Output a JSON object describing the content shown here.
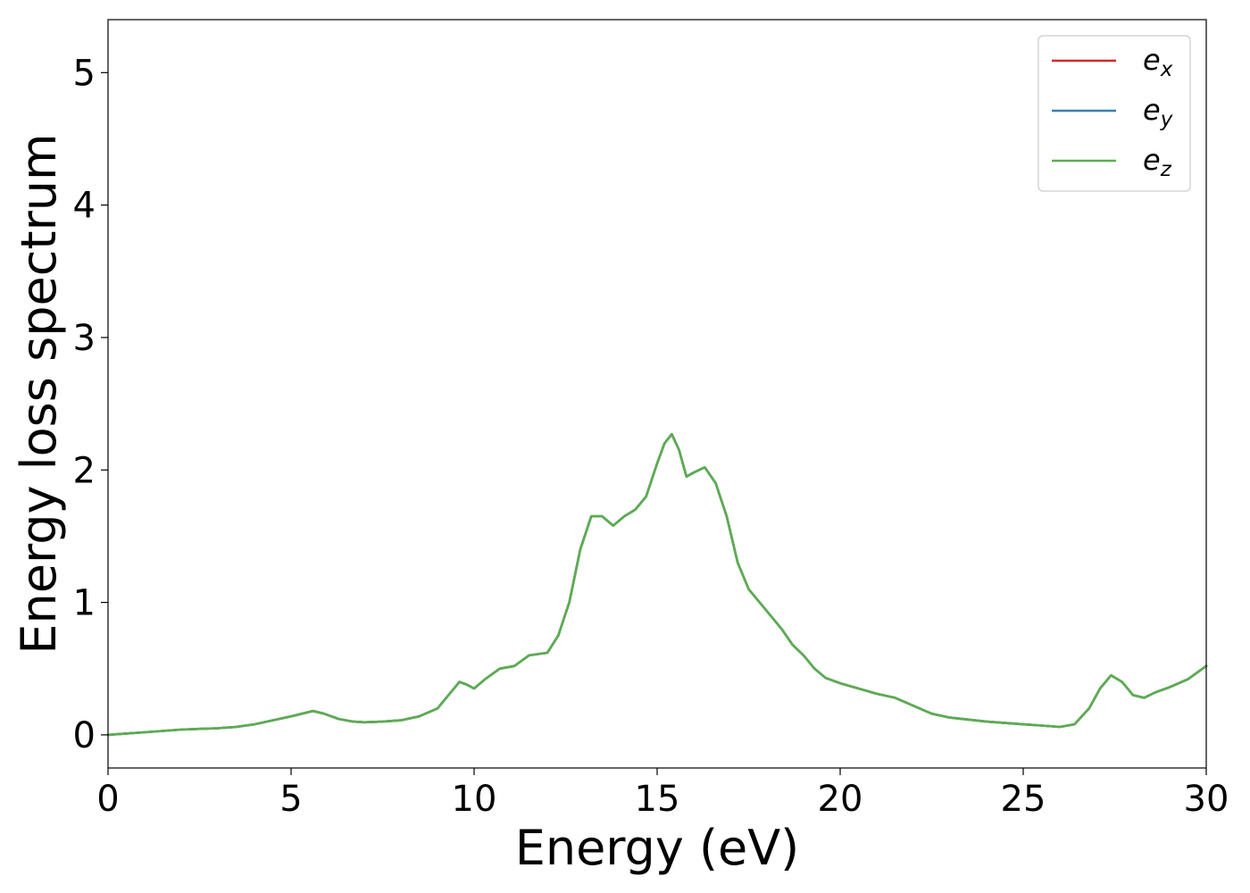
{
  "chart_data": {
    "type": "line",
    "xlabel": "Energy (eV)",
    "ylabel": "Energy loss spectrum",
    "xlim": [
      0,
      30
    ],
    "ylim": [
      -0.25,
      5.4
    ],
    "xticks": [
      0,
      5,
      10,
      15,
      20,
      25,
      30
    ],
    "yticks": [
      0,
      1,
      2,
      3,
      4,
      5
    ],
    "grid": false,
    "legend_position": "top-right",
    "series": [
      {
        "name": "e",
        "subscript": "x",
        "color": "#d62728"
      },
      {
        "name": "e",
        "subscript": "y",
        "color": "#3a7fb5"
      },
      {
        "name": "e",
        "subscript": "z",
        "color": "#5aae4f"
      }
    ],
    "x": [
      0,
      0.5,
      1.0,
      1.5,
      2.0,
      2.5,
      3.0,
      3.5,
      4.0,
      4.5,
      5.0,
      5.3,
      5.6,
      5.9,
      6.3,
      6.7,
      7.0,
      7.5,
      8.0,
      8.5,
      9.0,
      9.3,
      9.6,
      9.8,
      10.0,
      10.3,
      10.7,
      11.1,
      11.5,
      12.0,
      12.3,
      12.6,
      12.9,
      13.2,
      13.5,
      13.8,
      14.1,
      14.4,
      14.7,
      15.0,
      15.2,
      15.4,
      15.6,
      15.8,
      16.0,
      16.3,
      16.6,
      16.9,
      17.2,
      17.5,
      17.8,
      18.1,
      18.4,
      18.7,
      19.0,
      19.3,
      19.6,
      20.0,
      20.5,
      21.0,
      21.5,
      22.0,
      22.5,
      23.0,
      24.0,
      25.0,
      25.5,
      26.0,
      26.4,
      26.8,
      27.1,
      27.4,
      27.7,
      28.0,
      28.3,
      28.6,
      29.0,
      29.5,
      30.0
    ],
    "values": [
      0.0,
      0.01,
      0.02,
      0.03,
      0.04,
      0.045,
      0.05,
      0.06,
      0.08,
      0.11,
      0.14,
      0.16,
      0.18,
      0.16,
      0.12,
      0.1,
      0.095,
      0.1,
      0.11,
      0.14,
      0.2,
      0.3,
      0.4,
      0.38,
      0.35,
      0.42,
      0.5,
      0.52,
      0.6,
      0.62,
      0.75,
      1.0,
      1.4,
      1.65,
      1.65,
      1.58,
      1.65,
      1.7,
      1.8,
      2.05,
      2.2,
      2.27,
      2.15,
      1.95,
      1.98,
      2.02,
      1.9,
      1.65,
      1.3,
      1.1,
      1.0,
      0.9,
      0.8,
      0.68,
      0.6,
      0.5,
      0.43,
      0.39,
      0.35,
      0.31,
      0.28,
      0.22,
      0.16,
      0.13,
      0.1,
      0.08,
      0.07,
      0.06,
      0.08,
      0.2,
      0.35,
      0.45,
      0.4,
      0.3,
      0.28,
      0.32,
      0.36,
      0.42,
      0.52
    ]
  }
}
